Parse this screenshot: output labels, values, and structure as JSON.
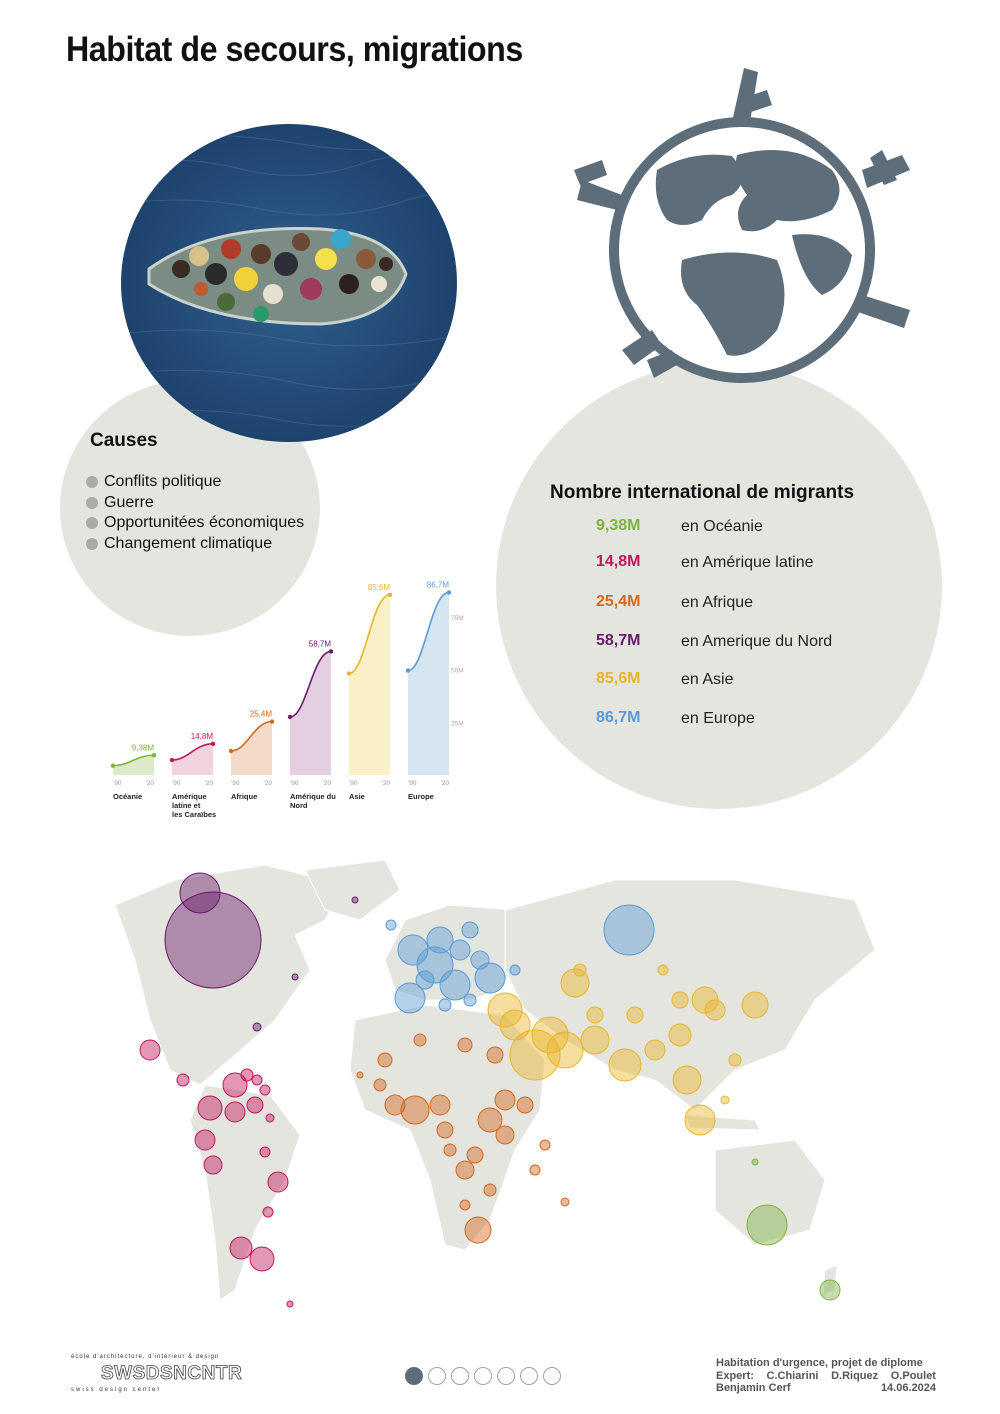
{
  "title": "Habitat de secours, migrations",
  "causes": {
    "title": "Causes",
    "items": [
      "Conflits politique",
      "Guerre",
      "Opportunitées économiques",
      "Changement climatique"
    ]
  },
  "migrants": {
    "title": "Nombre international de migrants",
    "rows": [
      {
        "value": "9,38M",
        "label": "en Océanie",
        "color": "#7cb342"
      },
      {
        "value": "14,8M",
        "label": "en Amérique latine",
        "color": "#c2185b"
      },
      {
        "value": "25,4M",
        "label": "en Afrique",
        "color": "#d2691e"
      },
      {
        "value": "58,7M",
        "label": "en Amerique du Nord",
        "color": "#6a1b6a"
      },
      {
        "value": "85,6M",
        "label": "en Asie",
        "color": "#e8b52a"
      },
      {
        "value": "86,7M",
        "label": "en Europe",
        "color": "#5b9bd5"
      }
    ]
  },
  "chart_data": {
    "type": "area",
    "x": [
      "'90",
      "'20"
    ],
    "y_ticks": [
      "25M",
      "50M",
      "75M"
    ],
    "ylim": [
      0,
      95
    ],
    "series": [
      {
        "name": "Océanie",
        "label": "9,38M",
        "color": "#7cb342",
        "fill": "#dde9c8",
        "values": [
          4.4,
          9.38
        ]
      },
      {
        "name": "Amérique latine et les Caraïbes",
        "label": "14,8M",
        "color": "#c2185b",
        "fill": "#f0d3de",
        "values": [
          7.1,
          14.8
        ]
      },
      {
        "name": "Afrique",
        "label": "25,4M",
        "color": "#d2691e",
        "fill": "#f3dac8",
        "values": [
          11.4,
          25.4
        ]
      },
      {
        "name": "Amérique du Nord",
        "label": "58,7M",
        "color": "#6a1b6a",
        "fill": "#e3cfe1",
        "values": [
          27.6,
          58.7
        ]
      },
      {
        "name": "Asie",
        "label": "85,6M",
        "color": "#e8b52a",
        "fill": "#faf0c8",
        "values": [
          48.2,
          85.6
        ]
      },
      {
        "name": "Europe",
        "label": "86,7M",
        "color": "#5b9bd5",
        "fill": "#d6e6f1",
        "values": [
          49.6,
          86.7
        ]
      }
    ]
  },
  "footer": {
    "school": "école d'architecture, d'intérieur & design",
    "logo": "SWSDSNCNTR",
    "center": "swiss design center",
    "pages": 7,
    "active_page": 1,
    "credits": {
      "line1": "Habitation d'urgence, projet de diplome",
      "expert_label": "Expert:",
      "experts": [
        "C.Chiarini",
        "D.Riquez",
        "O.Poulet"
      ],
      "author": "Benjamin Cerf",
      "date": "14.06.2024"
    }
  }
}
